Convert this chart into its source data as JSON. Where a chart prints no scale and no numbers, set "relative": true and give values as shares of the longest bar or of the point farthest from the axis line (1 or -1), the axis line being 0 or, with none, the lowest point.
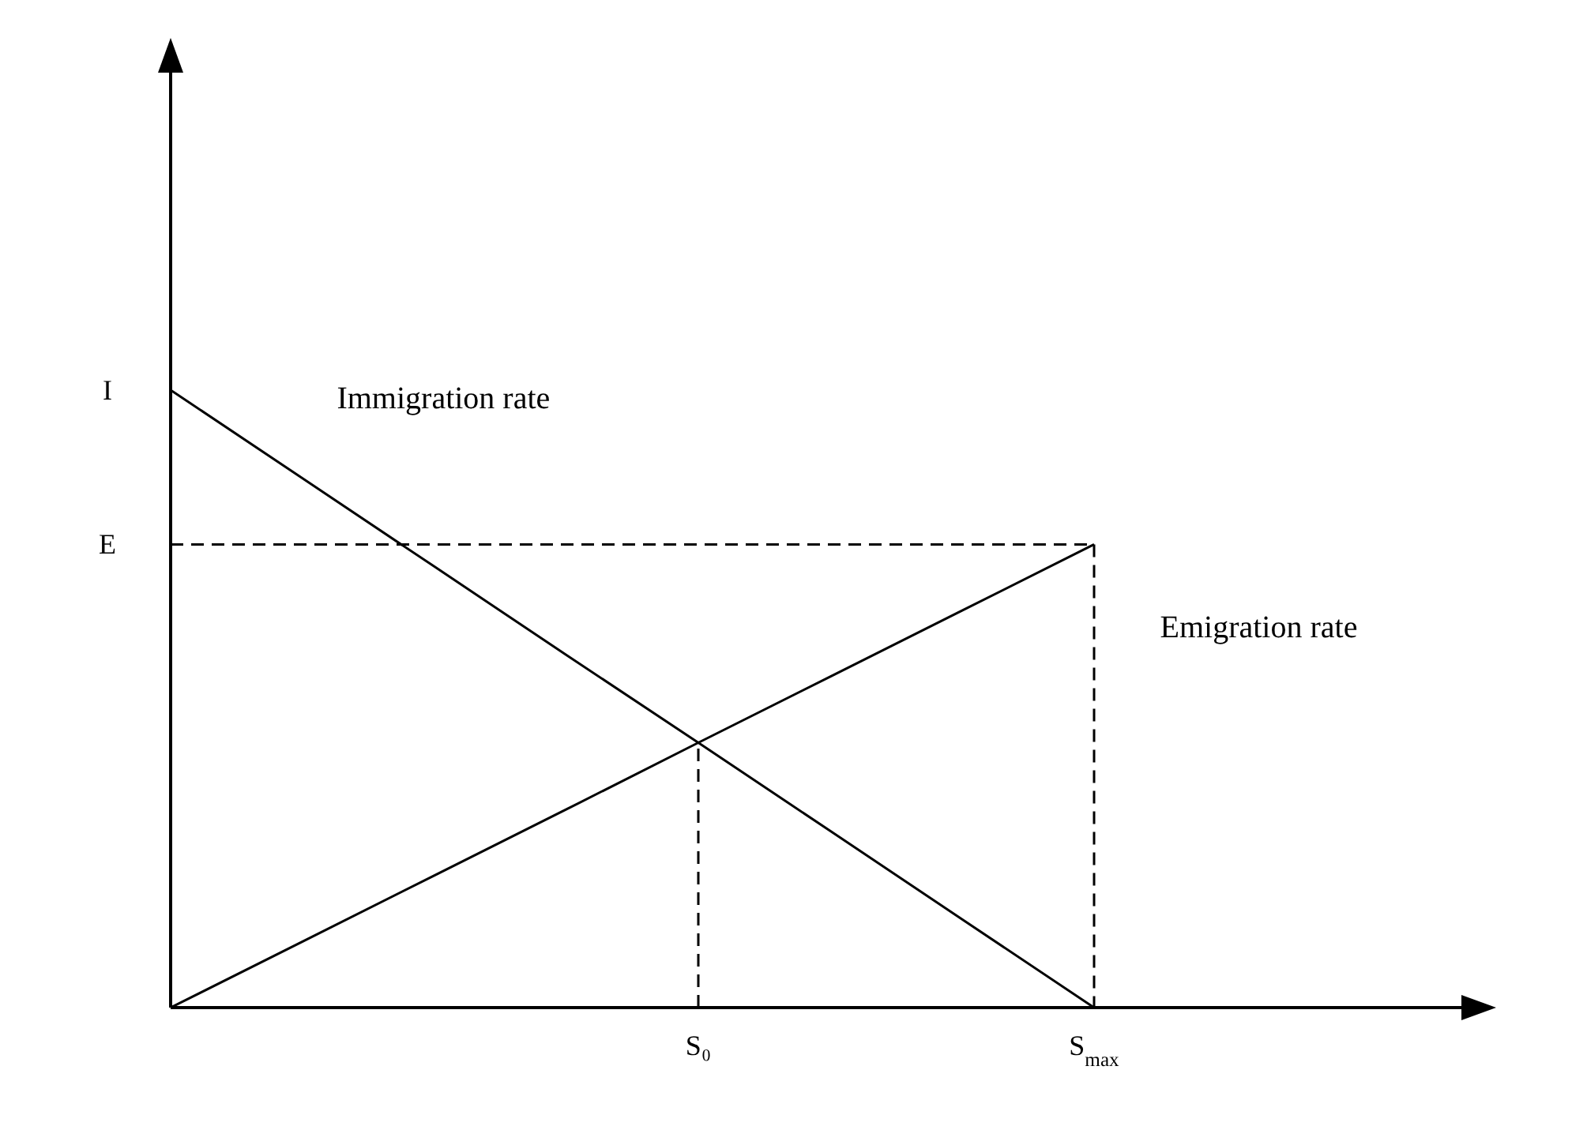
{
  "chart_data": {
    "type": "line",
    "relative": true,
    "categories": [
      null,
      null,
      null,
      null,
      "S₀",
      null,
      null,
      "S$_{max}$",
      null,
      null,
      null
    ],
    "annotations": [
      "I",
      "E"
    ],
    "grid": false,
    "legend": false,
    "marker": "none",
    "series": [
      {
        "name": "Immigration rate",
        "color": "#000000",
        "values": [
          1,
          0.857,
          0.714,
          0.571,
          0.429,
          0.286,
          0.143,
          0,
          null,
          null,
          null
        ],
        "line_style": "solid"
      },
      {
        "name": "Emigration rate",
        "color": "#000000",
        "values": [
          0,
          0.107,
          0.214,
          0.321,
          0.429,
          0.536,
          0.643,
          0.75,
          null,
          null,
          null
        ],
        "line_style": "solid"
      },
      {
        "color": "#000000",
        "values": [
          0.75,
          0.75,
          0.75,
          0.75,
          0.75,
          0.75,
          0.75,
          0.75,
          null,
          null,
          null
        ],
        "line_style": "dashed"
      },
      {
        "color": "#000000",
        "x": [
          "S$_{max}$",
          "S$_{max}$"
        ],
        "values": [
          0.75,
          0
        ],
        "line_style": "dashed"
      },
      {
        "color": "#000000",
        "x": [
          "S₀",
          "S₀"
        ],
        "values": [
          0,
          0.429
        ],
        "line_style": "dashed"
      }
    ]
  }
}
